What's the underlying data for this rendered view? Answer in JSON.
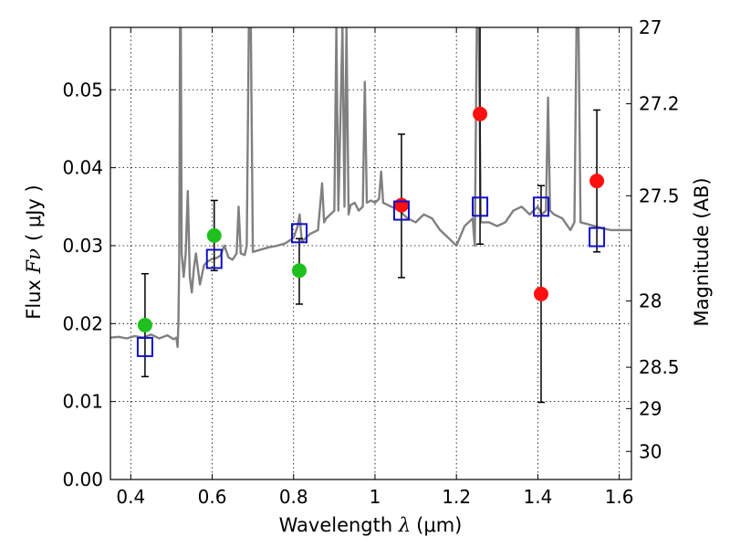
{
  "chart_data": {
    "type": "scatter",
    "title": "",
    "xlabel": "Wavelength  λ (μm)",
    "xlabel_prefix": "Wavelength  ",
    "xlabel_math": "λ",
    "xlabel_unit": "(μm)",
    "ylabel_prefix": "Flux  ",
    "ylabel_math": "Fν",
    "ylabel_unit": "( μJy )",
    "ylabel_right": "Magnitude (AB)",
    "xlim": [
      0.35,
      1.63
    ],
    "ylim": [
      0.0,
      0.058
    ],
    "grid": true,
    "x_ticks": [
      {
        "value": 0.4,
        "label": "0.4"
      },
      {
        "value": 0.6,
        "label": "0.6"
      },
      {
        "value": 0.8,
        "label": "0.8"
      },
      {
        "value": 1.0,
        "label": "1"
      },
      {
        "value": 1.2,
        "label": "1.2"
      },
      {
        "value": 1.4,
        "label": "1.4"
      },
      {
        "value": 1.6,
        "label": "1.6"
      }
    ],
    "y_ticks": [
      {
        "value": 0.0,
        "label": "0.00"
      },
      {
        "value": 0.01,
        "label": "0.01"
      },
      {
        "value": 0.02,
        "label": "0.02"
      },
      {
        "value": 0.03,
        "label": "0.03"
      },
      {
        "value": 0.04,
        "label": "0.04"
      },
      {
        "value": 0.05,
        "label": "0.05"
      }
    ],
    "y_right_ticks": [
      {
        "flux": 0.058,
        "label": "27"
      },
      {
        "flux": 0.0482,
        "label": "27.2"
      },
      {
        "flux": 0.0364,
        "label": "27.5"
      },
      {
        "flux": 0.0229,
        "label": "28"
      },
      {
        "flux": 0.0144,
        "label": "28.5"
      },
      {
        "flux": 0.0091,
        "label": "29"
      },
      {
        "flux": 0.0036,
        "label": "30"
      }
    ],
    "series": [
      {
        "marker": "circle",
        "color": "#1ec01e",
        "points": [
          {
            "x": 0.435,
            "y": 0.0198
          },
          {
            "x": 0.605,
            "y": 0.0313
          },
          {
            "x": 0.814,
            "y": 0.0268
          }
        ]
      },
      {
        "marker": "circle",
        "color": "#ff1010",
        "points": [
          {
            "x": 1.065,
            "y": 0.0352
          },
          {
            "x": 1.258,
            "y": 0.0469
          },
          {
            "x": 1.408,
            "y": 0.0238
          },
          {
            "x": 1.545,
            "y": 0.0383
          }
        ]
      },
      {
        "marker": "square",
        "color": "#1010cc",
        "points": [
          {
            "x": 0.435,
            "y": 0.017,
            "err_low": 0.0132,
            "err_high": 0.0264
          },
          {
            "x": 0.605,
            "y": 0.0283,
            "err_low": 0.0268,
            "err_high": 0.0358
          },
          {
            "x": 0.814,
            "y": 0.0316,
            "err_low": 0.0225,
            "err_high": 0.0309
          },
          {
            "x": 1.065,
            "y": 0.0345,
            "err_low": 0.0259,
            "err_high": 0.0443
          },
          {
            "x": 1.258,
            "y": 0.035,
            "err_low": 0.0302,
            "err_high": 0.058
          },
          {
            "x": 1.408,
            "y": 0.035,
            "err_low": 0.0099,
            "err_high": 0.0377
          },
          {
            "x": 1.545,
            "y": 0.0311,
            "err_low": 0.0292,
            "err_high": 0.0474
          }
        ]
      },
      {
        "line": "spectrum",
        "color": "#808080",
        "points": [
          [
            0.35,
            0.0182
          ],
          [
            0.37,
            0.0183
          ],
          [
            0.39,
            0.0181
          ],
          [
            0.41,
            0.0184
          ],
          [
            0.43,
            0.0182
          ],
          [
            0.45,
            0.0186
          ],
          [
            0.47,
            0.0181
          ],
          [
            0.49,
            0.0185
          ],
          [
            0.505,
            0.018
          ],
          [
            0.512,
            0.0182
          ],
          [
            0.515,
            0.017
          ],
          [
            0.517,
            0.02
          ],
          [
            0.519,
            0.028
          ],
          [
            0.521,
            0.058
          ],
          [
            0.523,
            0.058
          ],
          [
            0.525,
            0.029
          ],
          [
            0.53,
            0.026
          ],
          [
            0.535,
            0.029
          ],
          [
            0.54,
            0.037
          ],
          [
            0.545,
            0.026
          ],
          [
            0.55,
            0.024
          ],
          [
            0.555,
            0.027
          ],
          [
            0.56,
            0.029
          ],
          [
            0.57,
            0.025
          ],
          [
            0.58,
            0.0275
          ],
          [
            0.59,
            0.028
          ],
          [
            0.6,
            0.0283
          ],
          [
            0.61,
            0.0284
          ],
          [
            0.62,
            0.0287
          ],
          [
            0.63,
            0.03
          ],
          [
            0.64,
            0.0285
          ],
          [
            0.65,
            0.0282
          ],
          [
            0.66,
            0.029
          ],
          [
            0.665,
            0.035
          ],
          [
            0.67,
            0.029
          ],
          [
            0.68,
            0.0288
          ],
          [
            0.685,
            0.03
          ],
          [
            0.69,
            0.058
          ],
          [
            0.695,
            0.058
          ],
          [
            0.7,
            0.0292
          ],
          [
            0.72,
            0.0295
          ],
          [
            0.74,
            0.0298
          ],
          [
            0.76,
            0.03
          ],
          [
            0.78,
            0.0303
          ],
          [
            0.8,
            0.031
          ],
          [
            0.81,
            0.0325
          ],
          [
            0.815,
            0.034
          ],
          [
            0.82,
            0.0305
          ],
          [
            0.84,
            0.0315
          ],
          [
            0.86,
            0.032
          ],
          [
            0.87,
            0.038
          ],
          [
            0.875,
            0.033
          ],
          [
            0.88,
            0.0335
          ],
          [
            0.9,
            0.0345
          ],
          [
            0.905,
            0.058
          ],
          [
            0.91,
            0.0345
          ],
          [
            0.92,
            0.058
          ],
          [
            0.925,
            0.035
          ],
          [
            0.93,
            0.058
          ],
          [
            0.935,
            0.034
          ],
          [
            0.94,
            0.0352
          ],
          [
            0.95,
            0.0355
          ],
          [
            0.96,
            0.0345
          ],
          [
            0.97,
            0.035
          ],
          [
            0.975,
            0.051
          ],
          [
            0.98,
            0.0355
          ],
          [
            0.99,
            0.0358
          ],
          [
            1.0,
            0.0355
          ],
          [
            1.01,
            0.036
          ],
          [
            1.015,
            0.0395
          ],
          [
            1.02,
            0.0355
          ],
          [
            1.04,
            0.035
          ],
          [
            1.06,
            0.0345
          ],
          [
            1.08,
            0.0335
          ],
          [
            1.1,
            0.033
          ],
          [
            1.12,
            0.034
          ],
          [
            1.14,
            0.0335
          ],
          [
            1.16,
            0.032
          ],
          [
            1.18,
            0.031
          ],
          [
            1.2,
            0.03
          ],
          [
            1.22,
            0.0325
          ],
          [
            1.24,
            0.0335
          ],
          [
            1.245,
            0.03
          ],
          [
            1.25,
            0.058
          ],
          [
            1.255,
            0.058
          ],
          [
            1.26,
            0.033
          ],
          [
            1.28,
            0.033
          ],
          [
            1.3,
            0.0325
          ],
          [
            1.32,
            0.033
          ],
          [
            1.34,
            0.0345
          ],
          [
            1.36,
            0.035
          ],
          [
            1.38,
            0.034
          ],
          [
            1.4,
            0.035
          ],
          [
            1.41,
            0.034
          ],
          [
            1.42,
            0.0345
          ],
          [
            1.425,
            0.049
          ],
          [
            1.43,
            0.0345
          ],
          [
            1.44,
            0.034
          ],
          [
            1.46,
            0.0335
          ],
          [
            1.48,
            0.032
          ],
          [
            1.49,
            0.033
          ],
          [
            1.495,
            0.058
          ],
          [
            1.5,
            0.058
          ],
          [
            1.505,
            0.033
          ],
          [
            1.52,
            0.0328
          ],
          [
            1.54,
            0.0325
          ],
          [
            1.56,
            0.0322
          ],
          [
            1.58,
            0.032
          ],
          [
            1.6,
            0.032
          ],
          [
            1.63,
            0.032
          ]
        ]
      }
    ]
  }
}
